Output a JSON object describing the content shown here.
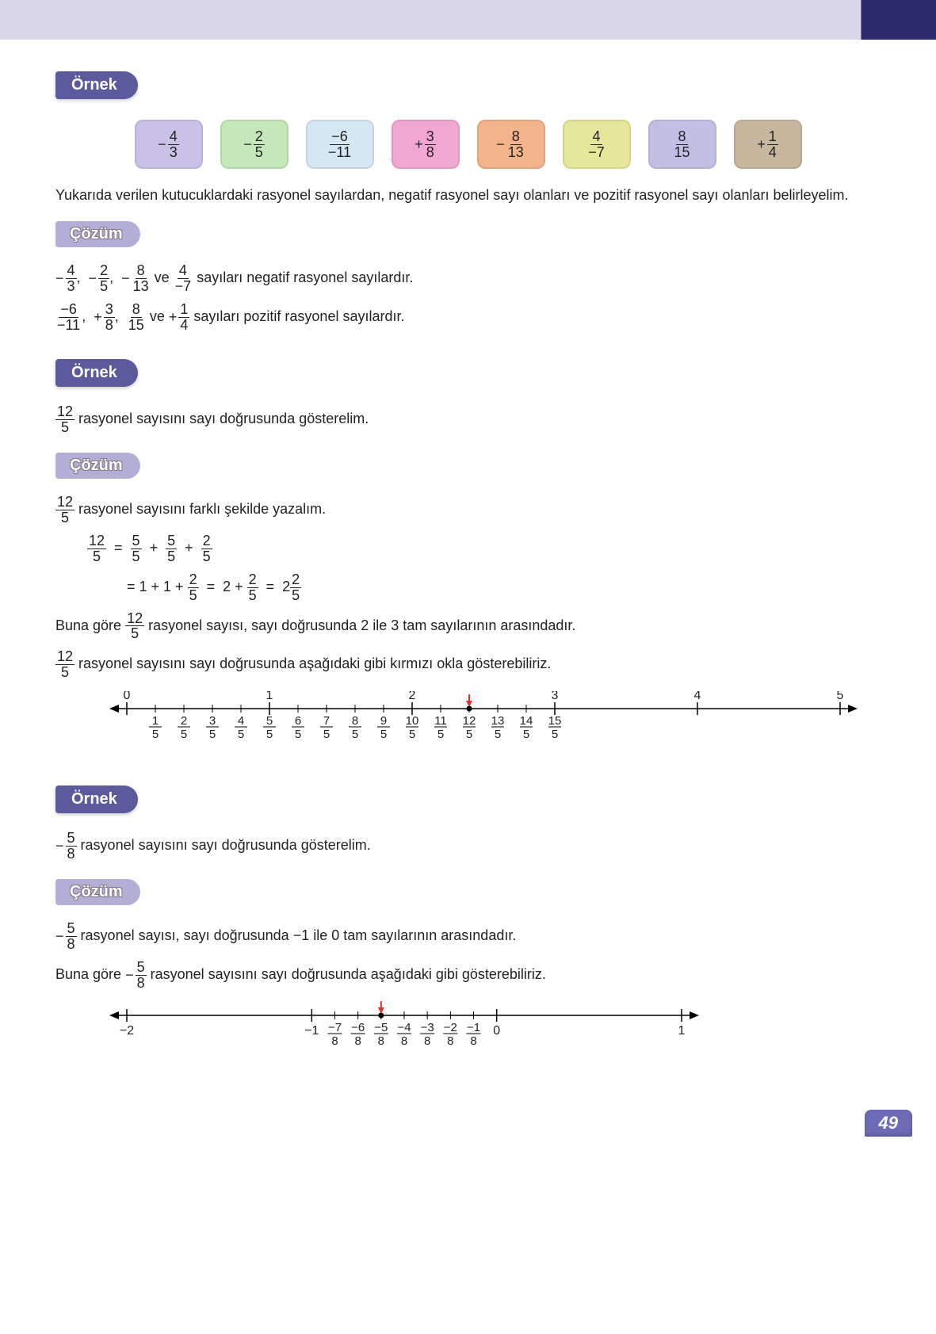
{
  "labels": {
    "ornek": "Örnek",
    "cozum": "Çözüm"
  },
  "page_number": "49",
  "boxes": [
    {
      "sign": "−",
      "num": "4",
      "den": "3",
      "bg": "#c9c2e6"
    },
    {
      "sign": "−",
      "num": "2",
      "den": "5",
      "bg": "#c4e8b8"
    },
    {
      "sign": "",
      "num": "−6",
      "den": "−11",
      "bg": "#d6e7f4"
    },
    {
      "sign": "+",
      "num": "3",
      "den": "8",
      "bg": "#f2a7d2"
    },
    {
      "sign": "−",
      "num": "8",
      "den": "13",
      "bg": "#f3b38b"
    },
    {
      "sign": "",
      "num": "4",
      "den": "−7",
      "bg": "#e7e79b"
    },
    {
      "sign": "",
      "num": "8",
      "den": "15",
      "bg": "#c2bfe5"
    },
    {
      "sign": "+",
      "num": "1",
      "den": "4",
      "bg": "#c7b79f"
    }
  ],
  "s1_intro": "Yukarıda verilen kutucuklardaki rasyonel sayılardan, negatif rasyonel sayı olanları ve pozitif rasyonel sayı olanları belirleyelim.",
  "s1_neg_tail": " sayıları negatif rasyonel sayılardır.",
  "s1_pos_tail": " sayıları pozitif rasyonel sayılardır.",
  "s1_ve": " ve ",
  "s2_text1": " rasyonel sayısını sayı doğrusunda gösterelim.",
  "s2_sol1": " rasyonel sayısını farklı şekilde yazalım.",
  "s2_mid1": "Buna göre ",
  "s2_mid2": " rasyonel sayısı, sayı doğrusunda 2 ile 3 tam sayılarının arasındadır.",
  "s2_mid3": " rasyonel sayısını sayı doğrusunda aşağıdaki gibi kırmızı okla gösterebiliriz.",
  "s3_text1": " rasyonel sayısını sayı doğrusunda gösterelim.",
  "s3_sol1": " rasyonel sayısı, sayı doğrusunda −1 ile 0 tam sayılarının arasındadır.",
  "s3_mid1": "Buna göre ",
  "s3_mid2": " rasyonel sayısını sayı doğrusunda aşağıdaki gibi gösterebiliriz.",
  "colors": {
    "badge_bg": "#5b5a9c",
    "sol_bg": "#b3aed6",
    "arrow_red": "#e03030"
  },
  "numline1": {
    "int_labels": [
      "0",
      "1",
      "2",
      "3",
      "4",
      "5"
    ],
    "den": "5",
    "marked_numer": 12,
    "frac_numers": [
      "1",
      "2",
      "3",
      "4",
      "5",
      "6",
      "7",
      "8",
      "9",
      "10",
      "11",
      "12",
      "13",
      "14",
      "15"
    ]
  },
  "numline2": {
    "int_labels": [
      "−2",
      "−1",
      "0",
      "1"
    ],
    "den": "8",
    "frac_numers": [
      "−7",
      "−6",
      "−5",
      "−4",
      "−3",
      "−2",
      "−1"
    ],
    "marked_index": 2
  }
}
